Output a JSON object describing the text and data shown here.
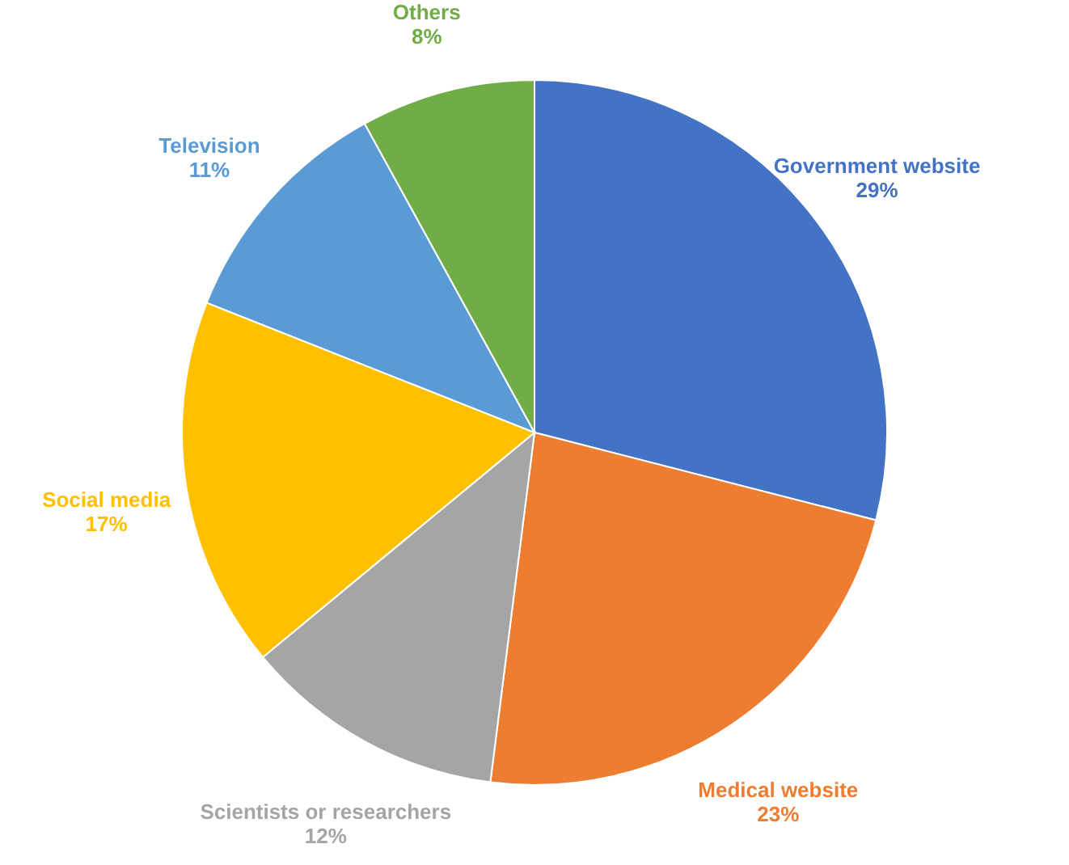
{
  "chart_data": {
    "type": "pie",
    "categories": [
      "Government website",
      "Medical website",
      "Scientists or researchers",
      "Social media",
      "Television",
      "Others"
    ],
    "values": [
      29,
      23,
      12,
      17,
      11,
      8
    ],
    "value_labels": [
      "29%",
      "23%",
      "12%",
      "17%",
      "11%",
      "8%"
    ],
    "colors": [
      "#4472c4",
      "#ed7d31",
      "#a5a5a5",
      "#ffc000",
      "#5b9bd5",
      "#70ad47"
    ]
  }
}
